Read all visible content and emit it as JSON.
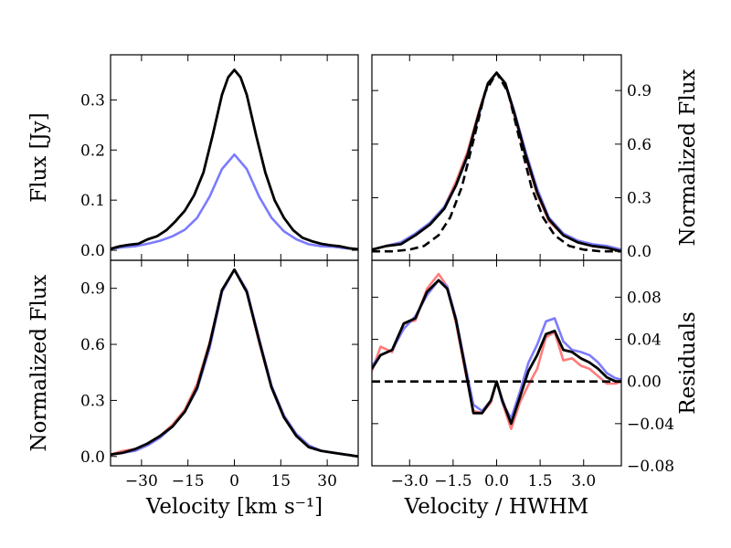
{
  "chart_data": [
    {
      "id": "top-left",
      "type": "line",
      "xlabel": "",
      "ylabel": "Flux [Jy]",
      "xlim": [
        -40,
        40
      ],
      "ylim": [
        -0.02,
        0.39
      ],
      "xticks": [
        -30,
        -15,
        0,
        15,
        30
      ],
      "xtick_labels": [],
      "yticks": [
        0.0,
        0.1,
        0.2,
        0.3
      ],
      "ytick_labels": [
        "0.0",
        "0.1",
        "0.2",
        "0.3"
      ],
      "ytick_side": "left",
      "series": [
        {
          "name": "blue",
          "color": "#7b7bff",
          "dash": false,
          "x": [
            -40,
            -36,
            -32,
            -28,
            -24,
            -20,
            -16,
            -12,
            -8,
            -4,
            0,
            4,
            8,
            12,
            16,
            20,
            24,
            28,
            32,
            36,
            40
          ],
          "y": [
            0.003,
            0.006,
            0.008,
            0.013,
            0.019,
            0.028,
            0.041,
            0.065,
            0.107,
            0.162,
            0.191,
            0.162,
            0.107,
            0.065,
            0.038,
            0.022,
            0.012,
            0.008,
            0.007,
            0.004,
            0.002
          ]
        },
        {
          "name": "black",
          "color": "#000000",
          "dash": false,
          "x": [
            -40,
            -37,
            -34,
            -31,
            -28,
            -25,
            -22,
            -19,
            -16,
            -13,
            -10,
            -7,
            -4,
            -2,
            0,
            2,
            4,
            7,
            10,
            13,
            16,
            19,
            22,
            25,
            28,
            31,
            34,
            37,
            40
          ],
          "y": [
            0.003,
            0.008,
            0.011,
            0.013,
            0.022,
            0.028,
            0.04,
            0.058,
            0.079,
            0.11,
            0.155,
            0.23,
            0.31,
            0.345,
            0.36,
            0.345,
            0.31,
            0.23,
            0.155,
            0.1,
            0.065,
            0.04,
            0.025,
            0.018,
            0.013,
            0.01,
            0.008,
            0.004,
            0.002
          ]
        }
      ]
    },
    {
      "id": "top-right",
      "type": "line",
      "xlabel": "",
      "ylabel": "Normalized Flux",
      "xlim": [
        -4.3,
        4.3
      ],
      "ylim": [
        -0.05,
        1.1
      ],
      "xticks": [
        -3.0,
        -1.5,
        0.0,
        1.5,
        3.0
      ],
      "xtick_labels": [],
      "yticks": [
        0.0,
        0.3,
        0.6,
        0.9
      ],
      "ytick_labels": [
        "0.0",
        "0.3",
        "0.6",
        "0.9"
      ],
      "ytick_side": "right",
      "series": [
        {
          "name": "red",
          "color": "#ff7b7b",
          "dash": false,
          "x": [
            -4.3,
            -3.8,
            -3.3,
            -2.8,
            -2.3,
            -1.8,
            -1.4,
            -1.0,
            -0.6,
            -0.3,
            0,
            0.3,
            0.6,
            1.0,
            1.4,
            1.8,
            2.3,
            2.8,
            3.3,
            3.8,
            4.3
          ],
          "y": [
            0.01,
            0.03,
            0.05,
            0.09,
            0.15,
            0.25,
            0.39,
            0.56,
            0.79,
            0.94,
            1.0,
            0.94,
            0.77,
            0.53,
            0.32,
            0.17,
            0.09,
            0.05,
            0.03,
            0.02,
            0.0
          ]
        },
        {
          "name": "blue",
          "color": "#7b7bff",
          "dash": false,
          "x": [
            -4.3,
            -3.8,
            -3.3,
            -2.8,
            -2.3,
            -1.8,
            -1.4,
            -1.0,
            -0.6,
            -0.3,
            0,
            0.3,
            0.6,
            1.0,
            1.4,
            1.8,
            2.3,
            2.8,
            3.3,
            3.8,
            4.3
          ],
          "y": [
            0.01,
            0.03,
            0.05,
            0.1,
            0.16,
            0.25,
            0.37,
            0.53,
            0.77,
            0.94,
            1.0,
            0.94,
            0.79,
            0.56,
            0.35,
            0.19,
            0.1,
            0.06,
            0.04,
            0.03,
            0.01
          ]
        },
        {
          "name": "black",
          "color": "#000000",
          "dash": false,
          "x": [
            -4.3,
            -3.8,
            -3.3,
            -2.8,
            -2.3,
            -1.8,
            -1.4,
            -1.0,
            -0.6,
            -0.3,
            0,
            0.3,
            0.6,
            1.0,
            1.4,
            1.8,
            2.3,
            2.8,
            3.3,
            3.8,
            4.3
          ],
          "y": [
            0.01,
            0.03,
            0.04,
            0.09,
            0.15,
            0.24,
            0.37,
            0.54,
            0.78,
            0.94,
            1.0,
            0.94,
            0.78,
            0.54,
            0.33,
            0.18,
            0.09,
            0.05,
            0.03,
            0.02,
            0.0
          ]
        },
        {
          "name": "gaussian",
          "color": "#000000",
          "dash": true,
          "x": [
            -4.3,
            -3.6,
            -3.0,
            -2.5,
            -2.0,
            -1.6,
            -1.2,
            -0.8,
            -0.4,
            0,
            0.4,
            0.8,
            1.2,
            1.6,
            2.0,
            2.5,
            3.0,
            3.6,
            4.3
          ],
          "y": [
            0.0,
            0.0,
            0.01,
            0.03,
            0.09,
            0.19,
            0.36,
            0.62,
            0.89,
            1.0,
            0.89,
            0.62,
            0.36,
            0.19,
            0.09,
            0.03,
            0.01,
            0.0,
            0.0
          ]
        }
      ]
    },
    {
      "id": "bottom-left",
      "type": "line",
      "xlabel": "Velocity [km s⁻¹]",
      "ylabel": "Normalized Flux",
      "xlim": [
        -40,
        40
      ],
      "ylim": [
        -0.05,
        1.05
      ],
      "xticks": [
        -30,
        -15,
        0,
        15,
        30
      ],
      "xtick_labels": [
        "−30",
        "−15",
        "0",
        "15",
        "30"
      ],
      "yticks": [
        0.0,
        0.3,
        0.6,
        0.9
      ],
      "ytick_labels": [
        "0.0",
        "0.3",
        "0.6",
        "0.9"
      ],
      "ytick_side": "left",
      "series": [
        {
          "name": "red",
          "color": "#ff7b7b",
          "dash": false,
          "x": [
            -40,
            -36,
            -32,
            -28,
            -24,
            -20,
            -16,
            -12,
            -8,
            -4,
            0,
            4,
            8,
            12,
            16,
            20,
            24,
            28,
            32,
            36,
            40
          ],
          "y": [
            0.01,
            0.03,
            0.04,
            0.07,
            0.11,
            0.17,
            0.25,
            0.39,
            0.61,
            0.89,
            1.0,
            0.88,
            0.61,
            0.37,
            0.21,
            0.11,
            0.05,
            0.03,
            0.02,
            0.01,
            0.0
          ]
        },
        {
          "name": "blue",
          "color": "#7b7bff",
          "dash": false,
          "x": [
            -40,
            -36,
            -32,
            -28,
            -24,
            -20,
            -16,
            -12,
            -8,
            -4,
            0,
            4,
            8,
            12,
            16,
            20,
            24,
            28,
            32,
            36,
            40
          ],
          "y": [
            0.01,
            0.02,
            0.03,
            0.06,
            0.1,
            0.16,
            0.24,
            0.36,
            0.58,
            0.88,
            1.0,
            0.89,
            0.63,
            0.38,
            0.22,
            0.12,
            0.06,
            0.03,
            0.02,
            0.01,
            0.0
          ]
        },
        {
          "name": "black",
          "color": "#000000",
          "dash": false,
          "x": [
            -40,
            -36,
            -32,
            -28,
            -24,
            -20,
            -16,
            -12,
            -8,
            -4,
            0,
            4,
            8,
            12,
            16,
            20,
            24,
            28,
            32,
            36,
            40
          ],
          "y": [
            0.01,
            0.02,
            0.04,
            0.07,
            0.11,
            0.16,
            0.24,
            0.37,
            0.6,
            0.89,
            1.0,
            0.88,
            0.62,
            0.37,
            0.21,
            0.11,
            0.05,
            0.03,
            0.02,
            0.01,
            0.0
          ]
        }
      ]
    },
    {
      "id": "bottom-right",
      "type": "line",
      "xlabel": "Velocity / HWHM",
      "ylabel": "Residuals",
      "xlim": [
        -4.3,
        4.3
      ],
      "ylim": [
        -0.08,
        0.115
      ],
      "xticks": [
        -3.0,
        -1.5,
        0.0,
        1.5,
        3.0
      ],
      "xtick_labels": [
        "−3.0",
        "−1.5",
        "0.0",
        "1.5",
        "3.0"
      ],
      "yticks": [
        -0.08,
        -0.04,
        0.0,
        0.04,
        0.08
      ],
      "ytick_labels": [
        "−0.08",
        "−0.04",
        "0.00",
        "0.04",
        "0.08"
      ],
      "ytick_side": "right",
      "series": [
        {
          "name": "red",
          "color": "#ff7b7b",
          "dash": false,
          "x": [
            -4.3,
            -4.0,
            -3.6,
            -3.2,
            -2.8,
            -2.4,
            -2.0,
            -1.7,
            -1.4,
            -1.1,
            -0.8,
            -0.5,
            -0.2,
            0,
            0.2,
            0.5,
            0.8,
            1.1,
            1.4,
            1.7,
            2.0,
            2.3,
            2.6,
            2.9,
            3.2,
            3.5,
            3.8,
            4.1,
            4.3
          ],
          "y": [
            0.01,
            0.033,
            0.028,
            0.055,
            0.058,
            0.088,
            0.102,
            0.09,
            0.055,
            0.012,
            -0.028,
            -0.03,
            -0.02,
            0.0,
            -0.02,
            -0.045,
            -0.02,
            -0.003,
            0.012,
            0.042,
            0.047,
            0.02,
            0.022,
            0.015,
            0.012,
            0.005,
            -0.002,
            -0.002,
            0.0
          ]
        },
        {
          "name": "blue",
          "color": "#7b7bff",
          "dash": false,
          "x": [
            -4.3,
            -4.0,
            -3.6,
            -3.2,
            -2.8,
            -2.4,
            -2.0,
            -1.7,
            -1.4,
            -1.1,
            -0.8,
            -0.5,
            -0.2,
            0,
            0.2,
            0.5,
            0.8,
            1.1,
            1.4,
            1.7,
            2.0,
            2.3,
            2.6,
            2.9,
            3.2,
            3.5,
            3.8,
            4.1,
            4.3
          ],
          "y": [
            0.015,
            0.025,
            0.03,
            0.05,
            0.062,
            0.082,
            0.096,
            0.09,
            0.06,
            0.018,
            -0.022,
            -0.028,
            -0.018,
            0.0,
            -0.02,
            -0.035,
            -0.01,
            0.018,
            0.035,
            0.057,
            0.06,
            0.038,
            0.03,
            0.028,
            0.025,
            0.018,
            0.008,
            0.003,
            0.002
          ]
        },
        {
          "name": "black",
          "color": "#000000",
          "dash": false,
          "x": [
            -4.3,
            -4.0,
            -3.6,
            -3.2,
            -2.8,
            -2.4,
            -2.0,
            -1.7,
            -1.4,
            -1.1,
            -0.8,
            -0.5,
            -0.2,
            0,
            0.2,
            0.5,
            0.8,
            1.1,
            1.4,
            1.7,
            2.0,
            2.3,
            2.6,
            2.9,
            3.2,
            3.5,
            3.8,
            4.1,
            4.3
          ],
          "y": [
            0.012,
            0.025,
            0.03,
            0.055,
            0.06,
            0.085,
            0.096,
            0.088,
            0.058,
            0.015,
            -0.03,
            -0.03,
            -0.018,
            0.0,
            -0.018,
            -0.04,
            -0.015,
            0.01,
            0.025,
            0.045,
            0.048,
            0.03,
            0.028,
            0.022,
            0.018,
            0.012,
            0.004,
            0.0,
            0.0
          ]
        },
        {
          "name": "zero-line",
          "color": "#000000",
          "dash": true,
          "x": [
            -4.3,
            4.3
          ],
          "y": [
            0.0,
            0.0
          ]
        }
      ]
    }
  ]
}
